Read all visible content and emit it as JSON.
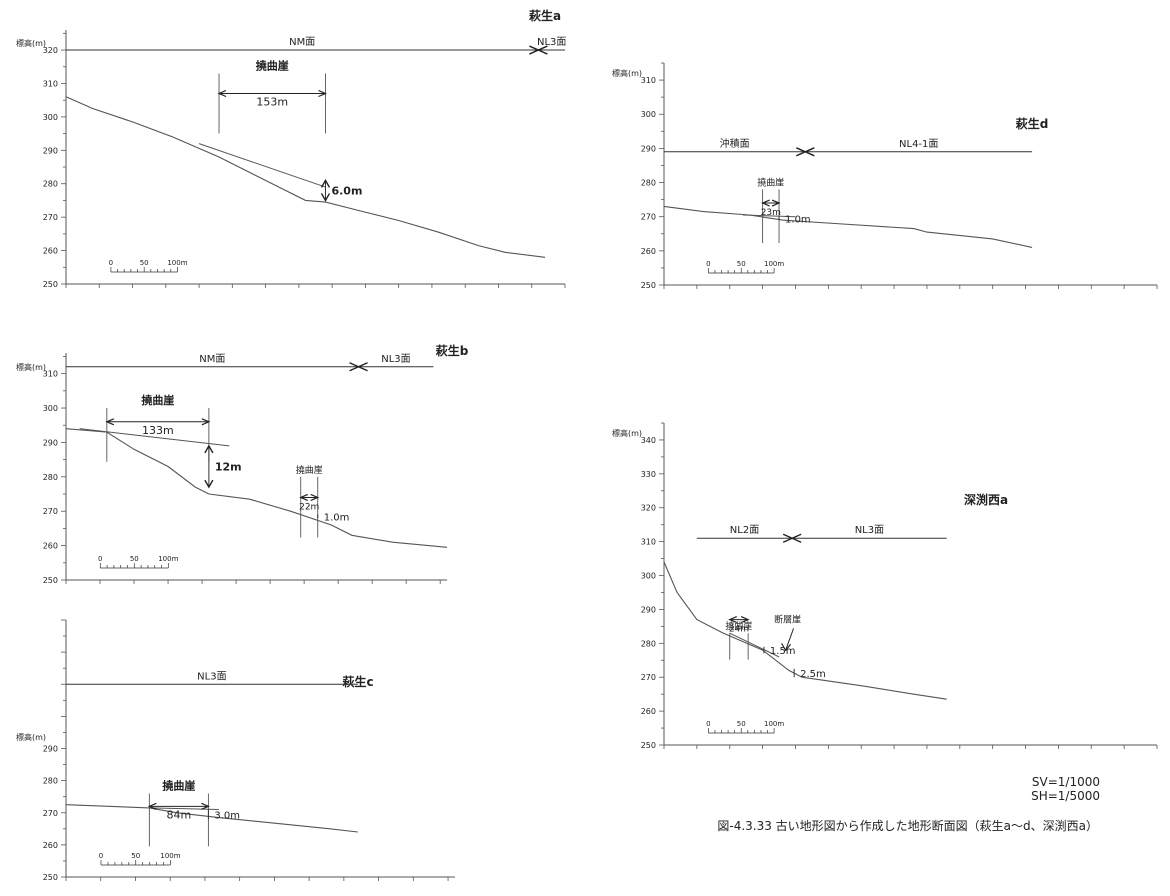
{
  "panels": [
    {
      "id": "hagyu-a",
      "title": "萩生a",
      "axis_label": "標高(m)",
      "y_ticks": [
        250,
        260,
        270,
        280,
        290,
        300,
        310,
        320
      ],
      "surfaces": [
        {
          "label": "NM面",
          "from_m": 0,
          "to_m": 710,
          "arrow": "right"
        },
        {
          "label": "NL3面",
          "from_m": 710,
          "to_m": 750,
          "arrow": "left"
        }
      ],
      "profile": [
        [
          0,
          306
        ],
        [
          40,
          302.5
        ],
        [
          100,
          298.5
        ],
        [
          160,
          294
        ],
        [
          230,
          288
        ],
        [
          270,
          284
        ],
        [
          320,
          279
        ],
        [
          360,
          275
        ],
        [
          390,
          274.5
        ],
        [
          440,
          272
        ],
        [
          500,
          269
        ],
        [
          560,
          265.5
        ],
        [
          620,
          261.5
        ],
        [
          660,
          259.5
        ],
        [
          720,
          258
        ]
      ],
      "upper_line": [
        [
          200,
          292
        ],
        [
          390,
          279
        ]
      ],
      "scarps": [
        {
          "label": "撓曲崖",
          "from_m": 230,
          "to_m": 390,
          "y_top": 313,
          "width_label": "153m",
          "y_width": 307
        }
      ],
      "offsets": [
        {
          "label": "6.0m",
          "x_m": 390,
          "y_low": 275,
          "y_high": 281
        }
      ],
      "scale_bar": {
        "labels": [
          "0",
          "50",
          "100m"
        ]
      }
    },
    {
      "id": "hagyu-b",
      "title": "萩生b",
      "axis_label": "標高(m)",
      "y_ticks": [
        250,
        260,
        270,
        280,
        290,
        300,
        310
      ],
      "surfaces": [
        {
          "label": "NM面",
          "from_m": 0,
          "to_m": 430,
          "arrow": "right"
        },
        {
          "label": "NL3面",
          "from_m": 430,
          "to_m": 540,
          "arrow": "left"
        }
      ],
      "profile": [
        [
          0,
          294
        ],
        [
          60,
          293
        ],
        [
          100,
          288
        ],
        [
          150,
          283
        ],
        [
          190,
          277
        ],
        [
          210,
          275
        ],
        [
          270,
          273.5
        ],
        [
          330,
          270
        ],
        [
          390,
          266
        ],
        [
          420,
          263
        ],
        [
          480,
          261
        ],
        [
          560,
          259.5
        ]
      ],
      "upper_line": [
        [
          20,
          294
        ],
        [
          240,
          289
        ]
      ],
      "scarps": [
        {
          "label": "撓曲崖",
          "from_m": 60,
          "to_m": 210,
          "y_top": 300,
          "width_label": "133m",
          "y_width": 296
        },
        {
          "label": "撓曲崖",
          "from_m": 345,
          "to_m": 370,
          "y_top": 280,
          "width_label": "22m",
          "y_width": 274
        }
      ],
      "offsets": [
        {
          "label": "12m",
          "x_m": 210,
          "y_low": 277,
          "y_high": 289
        },
        {
          "label": "1.0m",
          "x_m": 370,
          "y_low": 268,
          "y_high": 269
        }
      ],
      "scale_bar": {
        "labels": [
          "0",
          "50",
          "100m"
        ]
      }
    },
    {
      "id": "hagyu-c",
      "title": "萩生c",
      "axis_label": "標高(m)",
      "y_ticks": [
        250,
        260,
        270,
        280,
        290
      ],
      "surfaces": [
        {
          "label": "NL3面",
          "from_m": 0,
          "to_m": 420,
          "arrow": "none"
        }
      ],
      "profile": [
        [
          0,
          272.5
        ],
        [
          120,
          271.5
        ],
        [
          160,
          270
        ],
        [
          220,
          268.5
        ],
        [
          290,
          267
        ],
        [
          380,
          265
        ],
        [
          420,
          264
        ]
      ],
      "upper_line": [
        [
          120,
          271.5
        ],
        [
          220,
          271
        ]
      ],
      "scarps": [
        {
          "label": "撓曲崖",
          "from_m": 120,
          "to_m": 205,
          "y_top": 276,
          "width_label": "84m",
          "y_width": 272
        }
      ],
      "offsets": [
        {
          "label": "3.0m",
          "x_m": 205,
          "y_low": 268,
          "y_high": 271
        }
      ],
      "scale_bar": {
        "labels": [
          "0",
          "50",
          "100m"
        ]
      }
    },
    {
      "id": "hagyu-d",
      "title": "萩生d",
      "axis_label": "標高(m)",
      "y_ticks": [
        250,
        260,
        270,
        280,
        290,
        300,
        310
      ],
      "surfaces": [
        {
          "label": "沖積面",
          "from_m": 0,
          "to_m": 215,
          "arrow": "right"
        },
        {
          "label": "NL4-1面",
          "from_m": 215,
          "to_m": 560,
          "arrow": "left"
        }
      ],
      "profile": [
        [
          0,
          273
        ],
        [
          60,
          271.5
        ],
        [
          130,
          270.5
        ],
        [
          180,
          269
        ],
        [
          260,
          268
        ],
        [
          380,
          266.5
        ],
        [
          400,
          265.5
        ],
        [
          500,
          263.5
        ],
        [
          560,
          261
        ]
      ],
      "upper_line": [
        [
          120,
          270.5
        ],
        [
          200,
          270
        ]
      ],
      "scarps": [
        {
          "label": "撓曲崖",
          "from_m": 150,
          "to_m": 175,
          "y_top": 278,
          "width_label": "23m",
          "y_width": 274
        }
      ],
      "offsets": [
        {
          "label": "1.0m",
          "x_m": 175,
          "y_low": 269,
          "y_high": 270
        }
      ],
      "scale_bar": {
        "labels": [
          "0",
          "50",
          "100m"
        ]
      }
    },
    {
      "id": "fukabuchi-nishi-a",
      "title": "深渕西a",
      "axis_label": "標高(m)",
      "y_ticks": [
        250,
        260,
        270,
        280,
        290,
        300,
        310,
        320,
        330,
        340
      ],
      "surfaces": [
        {
          "label": "NL2面",
          "from_m": 50,
          "to_m": 195,
          "arrow": "right"
        },
        {
          "label": "NL3面",
          "from_m": 195,
          "to_m": 430,
          "arrow": "left"
        }
      ],
      "profile": [
        [
          0,
          304
        ],
        [
          20,
          295
        ],
        [
          50,
          287
        ],
        [
          90,
          283
        ],
        [
          150,
          278
        ],
        [
          190,
          272
        ],
        [
          210,
          270
        ],
        [
          300,
          267.5
        ],
        [
          380,
          265
        ],
        [
          430,
          263.5
        ]
      ],
      "upper_line": [
        [
          100,
          283
        ],
        [
          175,
          276
        ]
      ],
      "scarps": [
        {
          "label": "撓曲崖",
          "from_m": 100,
          "to_m": 128,
          "y_top": 283,
          "width_label": "24m",
          "y_width": 287
        },
        {
          "label": "断層崖",
          "from_m": 188,
          "to_m": 188,
          "y_top": 285,
          "width_label": "",
          "y_width": 285
        }
      ],
      "offsets": [
        {
          "label": "1.5m",
          "x_m": 152,
          "y_low": 277,
          "y_high": 279
        },
        {
          "label": "2.5m",
          "x_m": 198,
          "y_low": 270,
          "y_high": 272.5
        }
      ],
      "scale_bar": {
        "labels": [
          "0",
          "50",
          "100m"
        ]
      }
    }
  ],
  "scale_note": {
    "sv": "SV=1/1000",
    "sh": "SH=1/5000"
  },
  "caption": "図-4.3.33 古い地形図から作成した地形断面図（萩生a〜d、深渕西a）"
}
